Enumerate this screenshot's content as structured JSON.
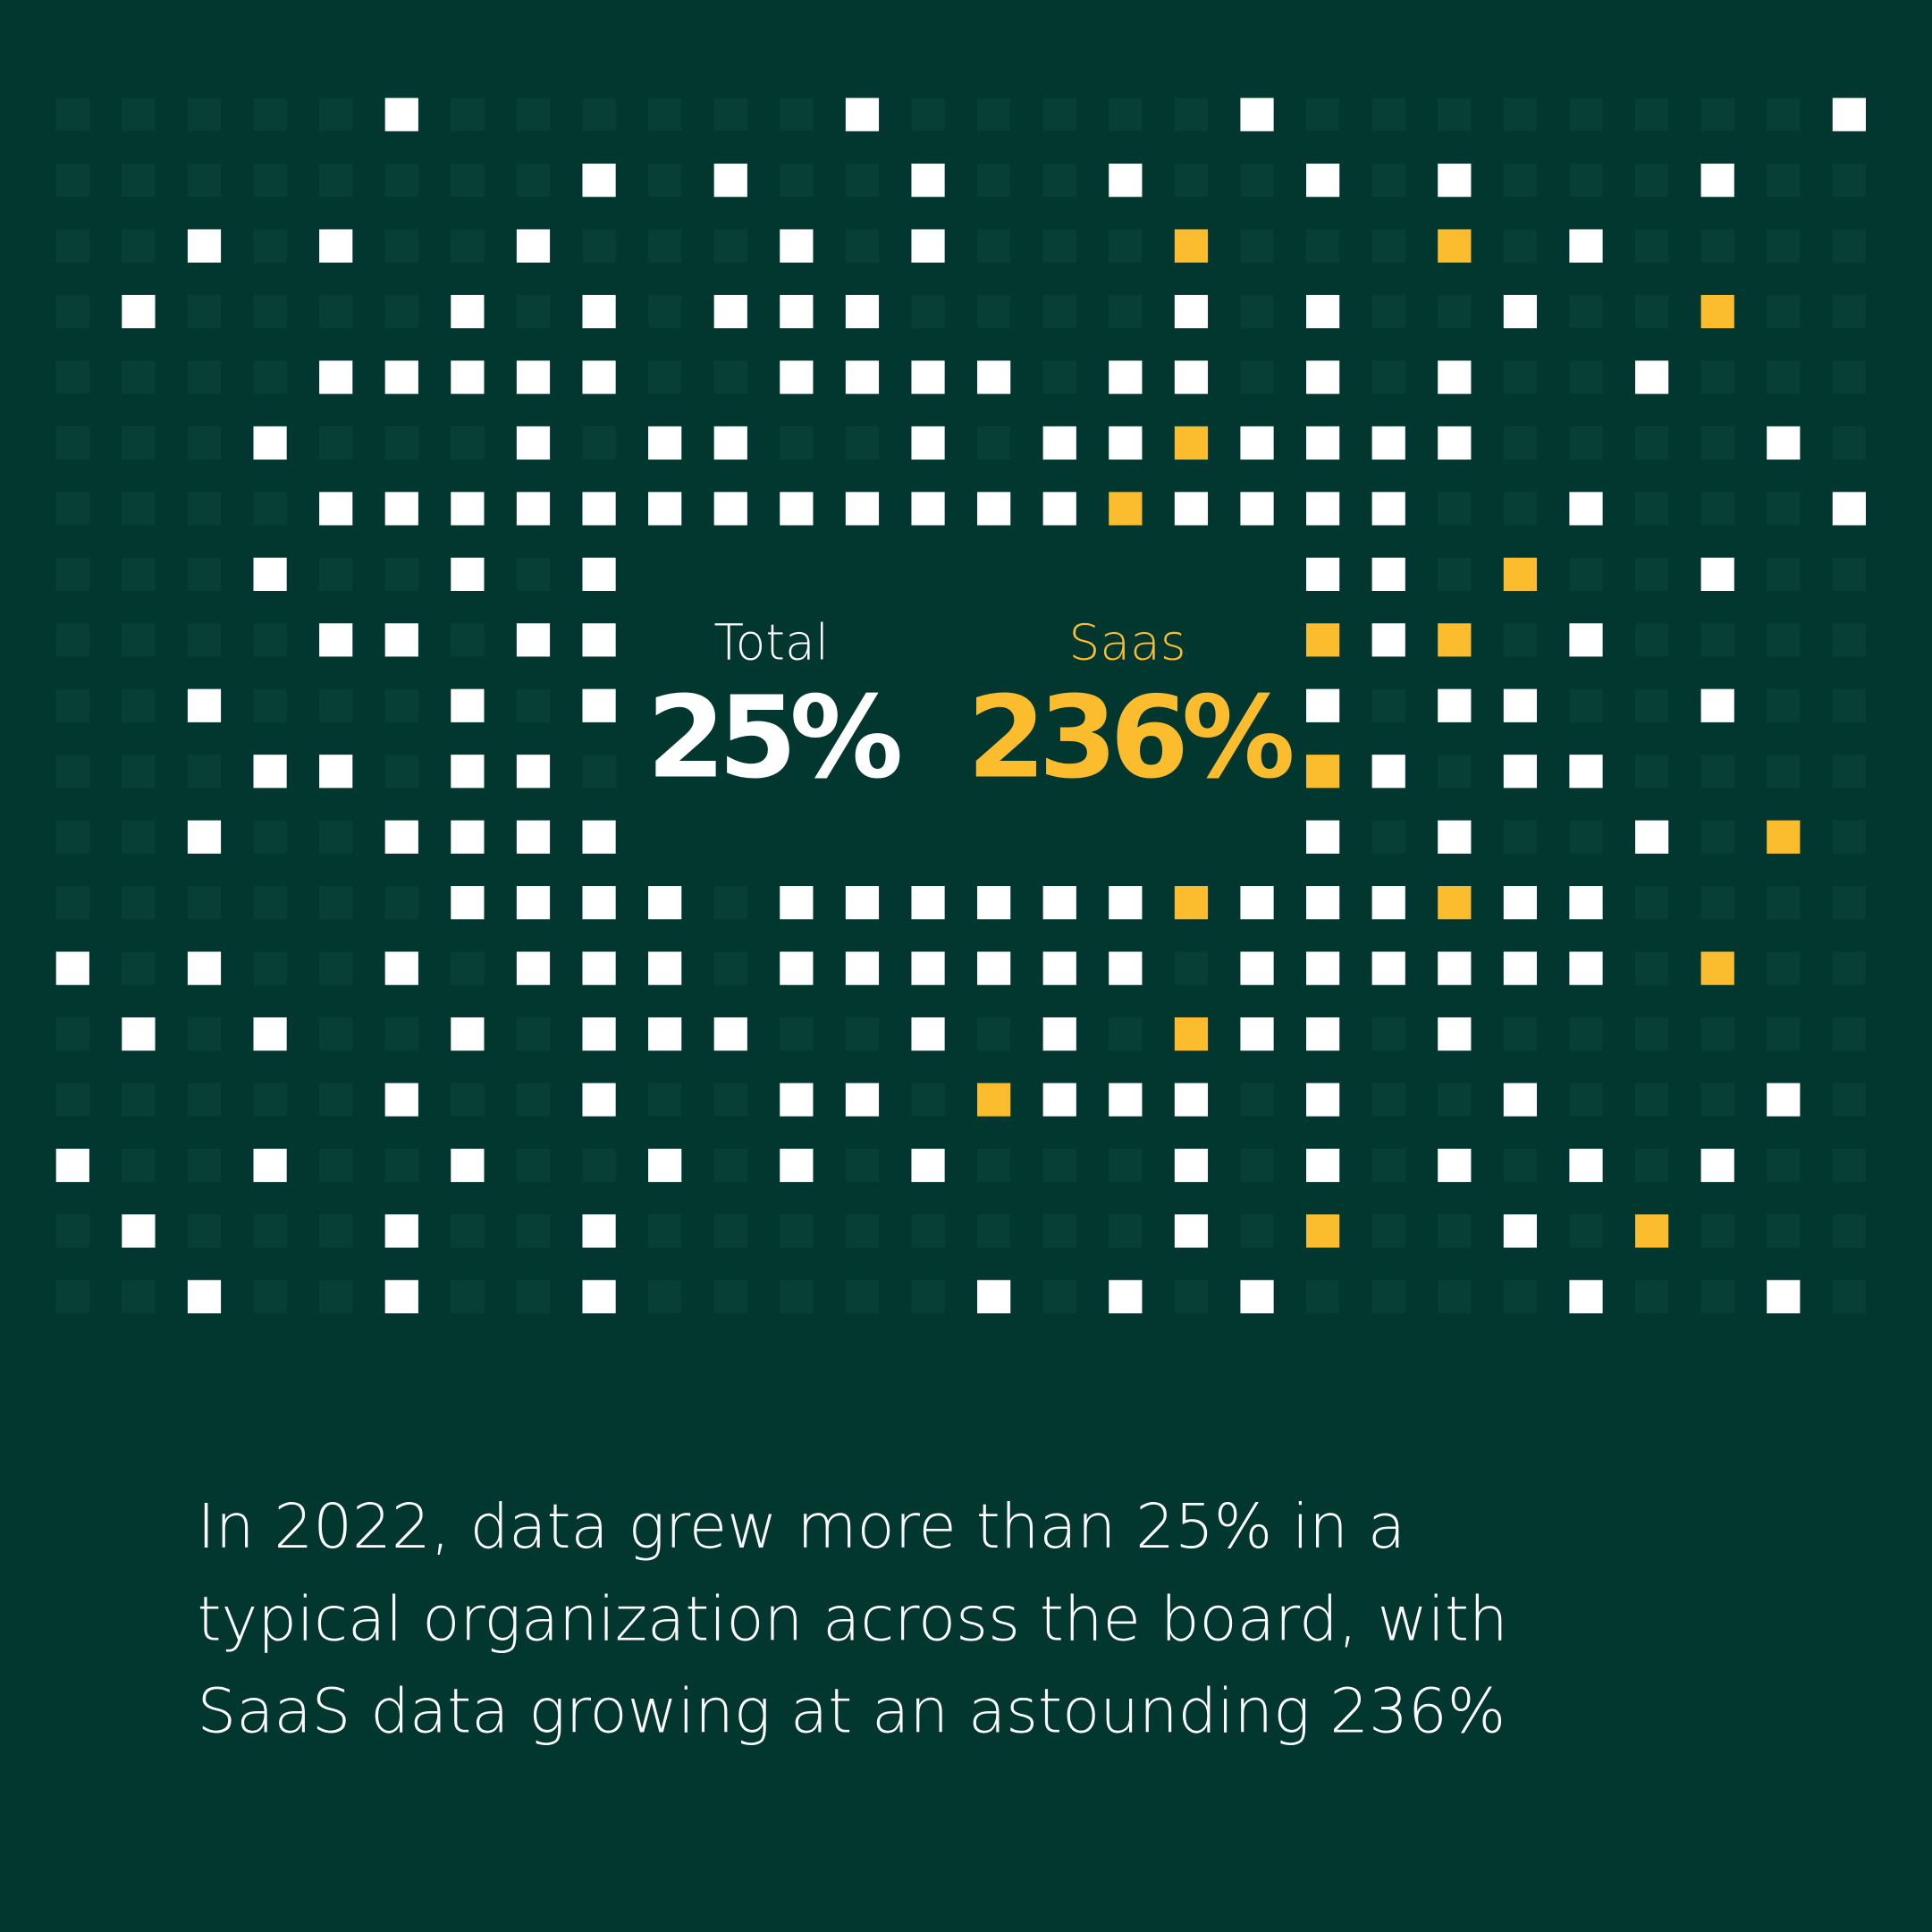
{
  "stats": [
    {
      "label": "Total",
      "value": "25%"
    },
    {
      "label": "Saas",
      "value": "236%"
    }
  ],
  "caption": [
    "In 2022, data grew more than 25% in a",
    "typical organization across the board, with",
    "SaaS data growing at an astounding 236%"
  ]
}
